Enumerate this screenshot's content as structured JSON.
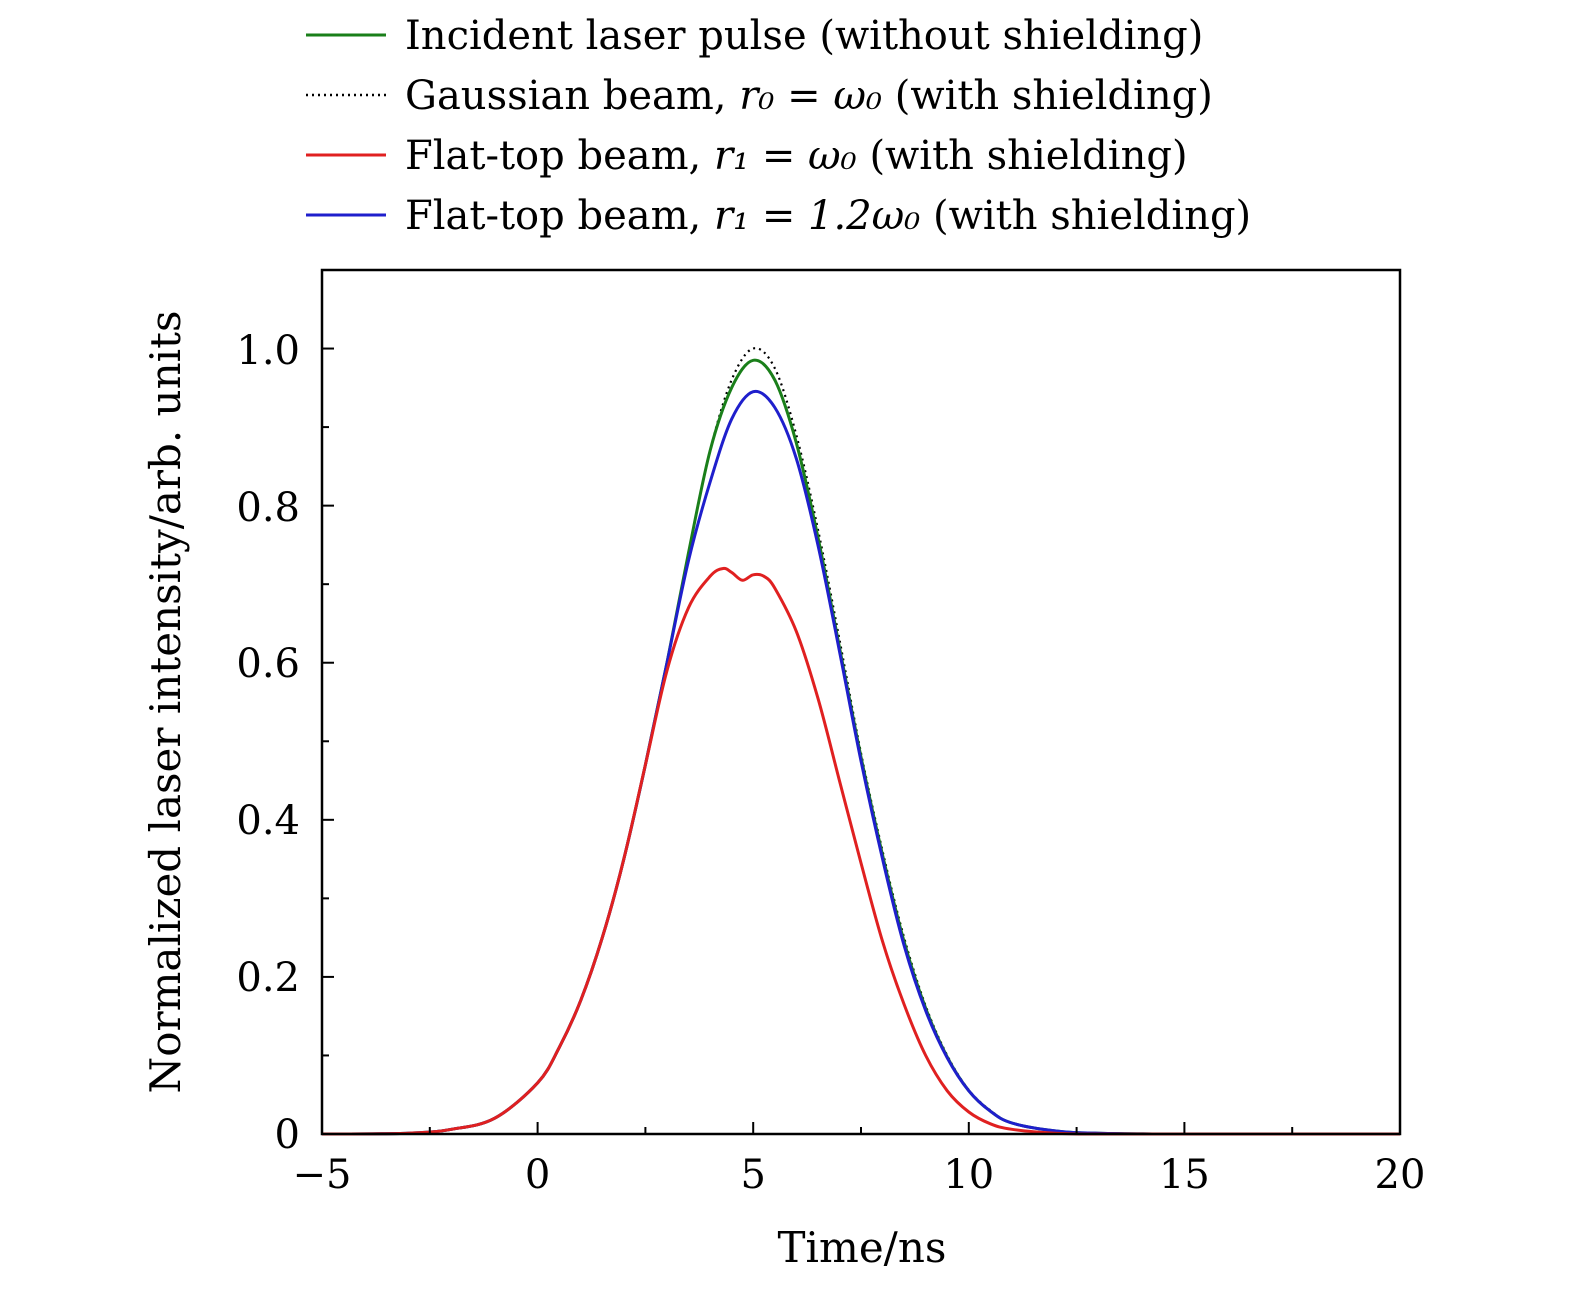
{
  "chart_data": {
    "type": "line",
    "xlabel": "Time/ns",
    "ylabel": "Normalized laser intensity/arb. units",
    "xlim": [
      -5,
      20
    ],
    "ylim": [
      0,
      1.1
    ],
    "xticks": [
      -5,
      0,
      5,
      10,
      15,
      20
    ],
    "xtick_labels": [
      "−5",
      "0",
      "5",
      "10",
      "15",
      "20"
    ],
    "yticks": [
      0,
      0.2,
      0.4,
      0.6,
      0.8,
      1.0
    ],
    "ytick_labels": [
      "0",
      "0.2",
      "0.4",
      "0.6",
      "0.8",
      "1.0"
    ],
    "legend_position": "top (above plot)",
    "series": [
      {
        "name": "Incident laser pulse (without shielding)",
        "color": "#1a7f1a",
        "style": "solid",
        "x": [
          -5,
          -3,
          -2,
          -1,
          0,
          0.5,
          1,
          1.5,
          2,
          2.5,
          3,
          3.5,
          4,
          4.5,
          5,
          5.5,
          6,
          6.5,
          7,
          7.5,
          8,
          8.5,
          9,
          9.5,
          10,
          10.5,
          11,
          12,
          13,
          15,
          20
        ],
        "y": [
          0,
          0.001,
          0.006,
          0.02,
          0.065,
          0.11,
          0.17,
          0.25,
          0.35,
          0.47,
          0.6,
          0.74,
          0.87,
          0.95,
          0.985,
          0.96,
          0.88,
          0.76,
          0.62,
          0.48,
          0.355,
          0.245,
          0.16,
          0.098,
          0.055,
          0.029,
          0.014,
          0.004,
          0.001,
          0,
          0
        ]
      },
      {
        "name": "Gaussian beam, r0 = ω0 (with shielding)",
        "label_prefix": "Gaussian beam,",
        "label_math": "r₀ = ω₀",
        "label_suffix": "(with shielding)",
        "color": "#000000",
        "style": "dotted",
        "x": [
          -5,
          -3,
          -2,
          -1,
          0,
          0.5,
          1,
          1.5,
          2,
          2.5,
          3,
          3.5,
          4,
          4.5,
          5,
          5.5,
          6,
          6.5,
          7,
          7.5,
          8,
          8.5,
          9,
          9.5,
          10,
          10.5,
          11,
          12,
          13,
          15,
          20
        ],
        "y": [
          0,
          0.001,
          0.006,
          0.02,
          0.065,
          0.11,
          0.17,
          0.25,
          0.35,
          0.47,
          0.6,
          0.74,
          0.87,
          0.96,
          1.0,
          0.975,
          0.89,
          0.77,
          0.63,
          0.485,
          0.36,
          0.25,
          0.163,
          0.1,
          0.056,
          0.03,
          0.014,
          0.004,
          0.001,
          0,
          0
        ]
      },
      {
        "name": "Flat-top beam, r1 = ω0 (with shielding)",
        "label_prefix": "Flat-top beam,",
        "label_math": "r₁ = ω₀",
        "label_suffix": "(with shielding)",
        "color": "#e02020",
        "style": "solid",
        "x": [
          -5,
          -3,
          -2,
          -1,
          0,
          0.5,
          1,
          1.5,
          2,
          2.5,
          3,
          3.5,
          4,
          4.3,
          4.5,
          4.75,
          5,
          5.25,
          5.5,
          6,
          6.5,
          7,
          7.5,
          8,
          8.5,
          9,
          9.5,
          10,
          10.5,
          11,
          12,
          13,
          15,
          20
        ],
        "y": [
          0,
          0.001,
          0.006,
          0.02,
          0.065,
          0.11,
          0.17,
          0.25,
          0.35,
          0.47,
          0.59,
          0.67,
          0.71,
          0.72,
          0.715,
          0.705,
          0.712,
          0.71,
          0.695,
          0.64,
          0.555,
          0.45,
          0.345,
          0.245,
          0.165,
          0.1,
          0.055,
          0.028,
          0.013,
          0.006,
          0.001,
          0,
          0,
          0
        ]
      },
      {
        "name": "Flat-top beam, r1 = 1.2ω0 (with shielding)",
        "label_prefix": "Flat-top beam,",
        "label_math": "r₁ = 1.2ω₀",
        "label_suffix": "(with shielding)",
        "color": "#1f1fcc",
        "style": "solid",
        "x": [
          -5,
          -3,
          -2,
          -1,
          0,
          0.5,
          1,
          1.5,
          2,
          2.5,
          3,
          3.5,
          4,
          4.5,
          5,
          5.5,
          6,
          6.5,
          7,
          7.5,
          8,
          8.5,
          9,
          9.5,
          10,
          10.5,
          11,
          12,
          13,
          15,
          20
        ],
        "y": [
          0,
          0.001,
          0.006,
          0.02,
          0.065,
          0.11,
          0.17,
          0.25,
          0.35,
          0.47,
          0.6,
          0.73,
          0.83,
          0.91,
          0.945,
          0.925,
          0.86,
          0.75,
          0.615,
          0.475,
          0.35,
          0.24,
          0.157,
          0.097,
          0.055,
          0.029,
          0.014,
          0.004,
          0.001,
          0,
          0
        ]
      }
    ]
  }
}
